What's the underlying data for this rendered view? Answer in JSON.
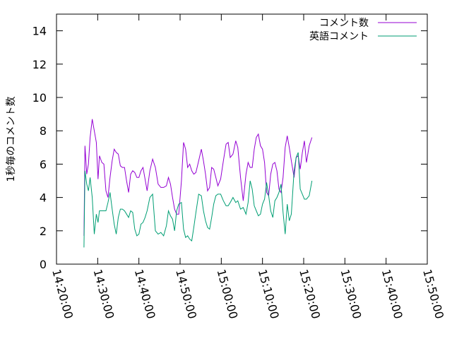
{
  "chart_data": {
    "type": "line",
    "title": "",
    "xlabel": "",
    "ylabel": "1秒毎のコメント数",
    "xlim": [
      "14:20:00",
      "15:50:00"
    ],
    "ylim": [
      0,
      15
    ],
    "x_ticks": [
      "14:20:00",
      "14:30:00",
      "14:40:00",
      "14:50:00",
      "15:00:00",
      "15:10:00",
      "15:20:00",
      "15:30:00",
      "15:40:00",
      "15:50:00"
    ],
    "y_ticks": [
      0,
      2,
      4,
      6,
      8,
      10,
      12,
      14
    ],
    "grid": false,
    "legend_position": "top-right",
    "series": [
      {
        "name": "コメント数",
        "color": "#9400d3",
        "points": [
          [
            "14:26:40",
            1.7
          ],
          [
            "14:26:55",
            7.1
          ],
          [
            "14:27:20",
            5.4
          ],
          [
            "14:27:45",
            6.0
          ],
          [
            "14:28:10",
            7.6
          ],
          [
            "14:28:40",
            8.7
          ],
          [
            "14:29:10",
            8.0
          ],
          [
            "14:29:40",
            7.3
          ],
          [
            "14:30:05",
            5.1
          ],
          [
            "14:30:25",
            6.5
          ],
          [
            "14:31:00",
            6.1
          ],
          [
            "14:31:30",
            6.0
          ],
          [
            "14:32:00",
            4.4
          ],
          [
            "14:32:30",
            4.0
          ],
          [
            "14:33:00",
            5.2
          ],
          [
            "14:33:30",
            6.2
          ],
          [
            "14:34:00",
            6.9
          ],
          [
            "14:34:30",
            6.7
          ],
          [
            "14:35:00",
            6.6
          ],
          [
            "14:35:30",
            5.9
          ],
          [
            "14:36:00",
            5.8
          ],
          [
            "14:36:30",
            5.8
          ],
          [
            "14:37:00",
            5.0
          ],
          [
            "14:37:30",
            4.3
          ],
          [
            "14:38:00",
            5.4
          ],
          [
            "14:38:30",
            5.6
          ],
          [
            "14:39:00",
            5.5
          ],
          [
            "14:39:30",
            5.2
          ],
          [
            "14:40:00",
            5.2
          ],
          [
            "14:40:30",
            5.6
          ],
          [
            "14:41:00",
            5.8
          ],
          [
            "14:41:30",
            5.1
          ],
          [
            "14:42:00",
            4.4
          ],
          [
            "14:42:40",
            5.6
          ],
          [
            "14:43:20",
            6.3
          ],
          [
            "14:44:00",
            5.8
          ],
          [
            "14:44:40",
            4.8
          ],
          [
            "14:45:20",
            4.6
          ],
          [
            "14:46:00",
            4.6
          ],
          [
            "14:46:40",
            4.7
          ],
          [
            "14:47:10",
            5.2
          ],
          [
            "14:47:40",
            4.8
          ],
          [
            "14:48:10",
            4.0
          ],
          [
            "14:48:40",
            3.3
          ],
          [
            "14:49:10",
            3.0
          ],
          [
            "14:49:40",
            3.0
          ],
          [
            "14:50:20",
            5.0
          ],
          [
            "14:50:50",
            7.3
          ],
          [
            "14:51:20",
            6.9
          ],
          [
            "14:51:50",
            5.8
          ],
          [
            "14:52:20",
            6.0
          ],
          [
            "14:52:50",
            5.6
          ],
          [
            "14:53:20",
            5.4
          ],
          [
            "14:53:50",
            5.5
          ],
          [
            "14:54:30",
            6.2
          ],
          [
            "14:55:10",
            6.9
          ],
          [
            "14:55:40",
            6.2
          ],
          [
            "14:56:10",
            5.4
          ],
          [
            "14:56:40",
            4.4
          ],
          [
            "14:57:10",
            4.6
          ],
          [
            "14:57:40",
            5.8
          ],
          [
            "14:58:10",
            5.7
          ],
          [
            "14:58:40",
            5.2
          ],
          [
            "14:59:10",
            4.7
          ],
          [
            "14:59:50",
            5.1
          ],
          [
            "15:00:30",
            6.2
          ],
          [
            "15:01:10",
            7.2
          ],
          [
            "15:01:40",
            7.3
          ],
          [
            "15:02:10",
            6.4
          ],
          [
            "15:02:50",
            6.6
          ],
          [
            "15:03:30",
            7.4
          ],
          [
            "15:04:00",
            7.0
          ],
          [
            "15:04:40",
            5.2
          ],
          [
            "15:05:20",
            3.8
          ],
          [
            "15:06:00",
            5.4
          ],
          [
            "15:06:30",
            6.1
          ],
          [
            "15:07:00",
            5.8
          ],
          [
            "15:07:30",
            5.8
          ],
          [
            "15:08:00",
            6.9
          ],
          [
            "15:08:30",
            7.6
          ],
          [
            "15:09:00",
            7.8
          ],
          [
            "15:09:30",
            7.1
          ],
          [
            "15:10:00",
            6.9
          ],
          [
            "15:10:30",
            6.1
          ],
          [
            "15:11:00",
            4.3
          ],
          [
            "15:11:30",
            4.1
          ],
          [
            "15:12:00",
            5.4
          ],
          [
            "15:12:30",
            6.0
          ],
          [
            "15:13:00",
            6.1
          ],
          [
            "15:13:30",
            5.6
          ],
          [
            "15:14:00",
            4.5
          ],
          [
            "15:14:30",
            4.3
          ],
          [
            "15:15:00",
            5.2
          ],
          [
            "15:15:30",
            7.0
          ],
          [
            "15:16:00",
            7.7
          ],
          [
            "15:16:30",
            7.0
          ],
          [
            "15:17:00",
            6.2
          ],
          [
            "15:17:40",
            5.2
          ],
          [
            "15:18:10",
            6.4
          ],
          [
            "15:18:40",
            6.5
          ],
          [
            "15:19:10",
            5.7
          ],
          [
            "15:19:40",
            6.7
          ],
          [
            "15:20:10",
            7.4
          ],
          [
            "15:20:40",
            6.1
          ],
          [
            "15:21:20",
            7.1
          ],
          [
            "15:22:00",
            7.6
          ]
        ]
      },
      {
        "name": "英語コメント",
        "color": "#009e73",
        "points": [
          [
            "14:26:40",
            1.0
          ],
          [
            "14:26:55",
            5.6
          ],
          [
            "14:27:20",
            4.8
          ],
          [
            "14:27:45",
            4.4
          ],
          [
            "14:28:10",
            5.2
          ],
          [
            "14:28:40",
            4.0
          ],
          [
            "14:29:10",
            1.8
          ],
          [
            "14:29:40",
            3.0
          ],
          [
            "14:30:05",
            2.5
          ],
          [
            "14:30:25",
            3.2
          ],
          [
            "14:31:00",
            3.2
          ],
          [
            "14:31:30",
            3.2
          ],
          [
            "14:32:00",
            3.2
          ],
          [
            "14:32:30",
            3.7
          ],
          [
            "14:33:00",
            4.3
          ],
          [
            "14:33:30",
            3.3
          ],
          [
            "14:34:00",
            2.4
          ],
          [
            "14:34:30",
            1.8
          ],
          [
            "14:35:00",
            2.8
          ],
          [
            "14:35:30",
            3.3
          ],
          [
            "14:36:00",
            3.3
          ],
          [
            "14:36:30",
            3.2
          ],
          [
            "14:37:00",
            3.0
          ],
          [
            "14:37:30",
            2.8
          ],
          [
            "14:38:00",
            3.2
          ],
          [
            "14:38:30",
            3.1
          ],
          [
            "14:39:00",
            2.1
          ],
          [
            "14:39:30",
            1.7
          ],
          [
            "14:40:00",
            1.8
          ],
          [
            "14:40:30",
            2.4
          ],
          [
            "14:41:00",
            2.5
          ],
          [
            "14:41:30",
            2.8
          ],
          [
            "14:42:00",
            3.2
          ],
          [
            "14:42:40",
            4.0
          ],
          [
            "14:43:20",
            4.2
          ],
          [
            "14:44:00",
            2.0
          ],
          [
            "14:44:40",
            1.8
          ],
          [
            "14:45:20",
            1.9
          ],
          [
            "14:46:00",
            1.7
          ],
          [
            "14:46:40",
            2.3
          ],
          [
            "14:47:10",
            3.2
          ],
          [
            "14:47:40",
            2.9
          ],
          [
            "14:48:10",
            2.7
          ],
          [
            "14:48:40",
            2.0
          ],
          [
            "14:49:10",
            3.2
          ],
          [
            "14:49:40",
            3.6
          ],
          [
            "14:50:20",
            3.7
          ],
          [
            "14:50:50",
            2.1
          ],
          [
            "14:51:20",
            1.6
          ],
          [
            "14:51:50",
            1.7
          ],
          [
            "14:52:20",
            1.5
          ],
          [
            "14:52:50",
            1.4
          ],
          [
            "14:53:20",
            2.2
          ],
          [
            "14:53:50",
            3.1
          ],
          [
            "14:54:30",
            4.2
          ],
          [
            "14:55:10",
            4.1
          ],
          [
            "14:55:40",
            3.2
          ],
          [
            "14:56:10",
            2.6
          ],
          [
            "14:56:40",
            2.2
          ],
          [
            "14:57:10",
            2.1
          ],
          [
            "14:57:40",
            2.8
          ],
          [
            "14:58:10",
            3.6
          ],
          [
            "14:58:40",
            4.1
          ],
          [
            "14:59:10",
            4.2
          ],
          [
            "14:59:50",
            4.2
          ],
          [
            "15:00:30",
            3.8
          ],
          [
            "15:01:10",
            3.5
          ],
          [
            "15:01:40",
            3.5
          ],
          [
            "15:02:10",
            3.7
          ],
          [
            "15:02:50",
            4.0
          ],
          [
            "15:03:30",
            3.7
          ],
          [
            "15:04:00",
            3.8
          ],
          [
            "15:04:40",
            3.3
          ],
          [
            "15:05:20",
            3.4
          ],
          [
            "15:06:00",
            3.0
          ],
          [
            "15:06:30",
            3.7
          ],
          [
            "15:07:00",
            5.0
          ],
          [
            "15:07:30",
            4.5
          ],
          [
            "15:08:00",
            3.5
          ],
          [
            "15:08:30",
            3.2
          ],
          [
            "15:09:00",
            2.9
          ],
          [
            "15:09:30",
            3.0
          ],
          [
            "15:10:00",
            3.6
          ],
          [
            "15:10:30",
            3.9
          ],
          [
            "15:11:00",
            4.9
          ],
          [
            "15:11:30",
            4.1
          ],
          [
            "15:12:00",
            3.2
          ],
          [
            "15:12:30",
            2.8
          ],
          [
            "15:13:00",
            3.8
          ],
          [
            "15:13:30",
            4.0
          ],
          [
            "15:14:00",
            4.3
          ],
          [
            "15:14:30",
            4.8
          ],
          [
            "15:15:00",
            3.1
          ],
          [
            "15:15:30",
            1.8
          ],
          [
            "15:16:00",
            3.6
          ],
          [
            "15:16:30",
            2.6
          ],
          [
            "15:17:00",
            3.0
          ],
          [
            "15:17:40",
            5.6
          ],
          [
            "15:18:10",
            6.4
          ],
          [
            "15:18:40",
            6.7
          ],
          [
            "15:19:10",
            4.5
          ],
          [
            "15:19:40",
            4.2
          ],
          [
            "15:20:10",
            3.9
          ],
          [
            "15:20:40",
            3.9
          ],
          [
            "15:21:20",
            4.1
          ],
          [
            "15:22:00",
            5.0
          ]
        ]
      }
    ]
  }
}
